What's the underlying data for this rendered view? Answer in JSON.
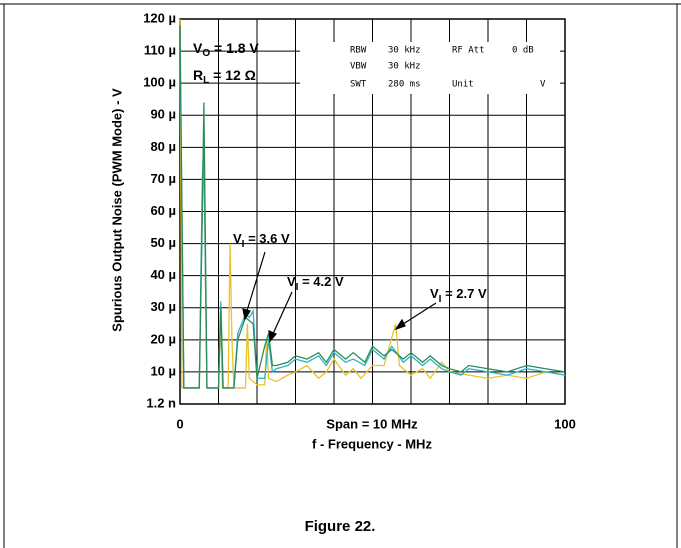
{
  "chart_data": {
    "type": "line",
    "y_label": "Spurious Output Noise (PWM Mode) - V",
    "x_label": "f - Frequency - MHz",
    "caption": "Figure 22.",
    "span_note": "Span = 10 MHz",
    "conditions": [
      {
        "main": "V",
        "sub": "O",
        "tail": " = 1.8 V"
      },
      {
        "main": "R",
        "sub": "L",
        "tail": " = 12 Ω"
      }
    ],
    "instrument": [
      [
        "RBW",
        "30 kHz",
        "RF Att",
        "0 dB"
      ],
      [
        "VBW",
        "30 kHz"
      ],
      [
        "SWT",
        "280 ms",
        "Unit",
        "V"
      ]
    ],
    "xlim": [
      0,
      100
    ],
    "xticks": [
      0,
      {
        "value": 10,
        "label": null
      },
      {
        "value": 20,
        "label": null
      },
      {
        "value": 30,
        "label": null
      },
      {
        "value": 40,
        "label": null
      },
      {
        "value": 50,
        "label": null
      },
      {
        "value": 60,
        "label": null
      },
      {
        "value": 70,
        "label": null
      },
      {
        "value": 80,
        "label": null
      },
      {
        "value": 90,
        "label": null
      },
      100
    ],
    "ylim": [
      0.0012,
      120
    ],
    "yticks": [
      {
        "value": 0.0012,
        "label": "1.2 n"
      },
      {
        "value": 10,
        "label": "10 µ"
      },
      {
        "value": 20,
        "label": "20 µ"
      },
      {
        "value": 30,
        "label": "30 µ"
      },
      {
        "value": 40,
        "label": "40 µ"
      },
      {
        "value": 50,
        "label": "50 µ"
      },
      {
        "value": 60,
        "label": "60 µ"
      },
      {
        "value": 70,
        "label": "70 µ"
      },
      {
        "value": 80,
        "label": "80 µ"
      },
      {
        "value": 90,
        "label": "90 µ"
      },
      {
        "value": 100,
        "label": "100 µ"
      },
      {
        "value": 110,
        "label": "110 µ"
      },
      {
        "value": 120,
        "label": "120 µ"
      }
    ],
    "grid": true,
    "series": [
      {
        "label": {
          "main": "V",
          "sub": "I",
          "tail": " = 2.7 V"
        },
        "color": "#e8c42c",
        "x": [
          0,
          0.5,
          1,
          5,
          5.8,
          6.2,
          6.6,
          7,
          10,
          10.5,
          11,
          12.5,
          13,
          13.5,
          14,
          17,
          17.5,
          18,
          20,
          22,
          22.5,
          23,
          25,
          28,
          30,
          33,
          36,
          38,
          40,
          43,
          45,
          47,
          50,
          53,
          56,
          57,
          60,
          63,
          65,
          68,
          70,
          75,
          80,
          85,
          90,
          95,
          100
        ],
        "values": [
          120,
          5,
          5,
          5,
          60,
          80,
          40,
          5,
          5,
          30,
          5,
          5,
          50,
          20,
          5,
          5,
          25,
          8,
          6,
          6,
          20,
          8,
          7,
          9,
          10,
          12,
          8,
          10,
          14,
          9,
          11,
          8,
          12,
          12,
          25,
          12,
          9,
          11,
          8,
          13,
          10,
          9,
          8,
          9,
          8,
          10,
          9
        ]
      },
      {
        "label": {
          "main": "V",
          "sub": "I",
          "tail": " = 3.6 V"
        },
        "color": "#2ab4c4",
        "x": [
          0,
          1,
          5,
          5.8,
          6.2,
          6.6,
          7,
          10,
          10.6,
          11.2,
          14,
          15,
          17,
          18,
          19,
          20,
          22,
          23,
          24,
          25,
          28,
          30,
          33,
          36,
          38,
          40,
          43,
          45,
          48,
          50,
          53,
          55,
          58,
          60,
          63,
          65,
          68,
          70,
          73,
          75,
          80,
          85,
          90,
          95,
          100
        ],
        "values": [
          115,
          5,
          5,
          70,
          82,
          40,
          5,
          5,
          32,
          5,
          5,
          22,
          28,
          27,
          29,
          8,
          8,
          20,
          10,
          11,
          12,
          14,
          13,
          15,
          12,
          16,
          13,
          14,
          12,
          17,
          14,
          18,
          13,
          15,
          12,
          14,
          11,
          10,
          9,
          11,
          10,
          9,
          11,
          10,
          9
        ]
      },
      {
        "label": {
          "main": "V",
          "sub": "I",
          "tail": " = 4.2 V"
        },
        "color": "#2e8b57",
        "x": [
          0,
          1,
          5,
          5.8,
          6.2,
          6.6,
          7,
          10,
          10.6,
          11.2,
          14,
          15,
          17,
          18,
          19,
          20,
          22,
          23,
          24,
          25,
          28,
          30,
          33,
          36,
          38,
          40,
          43,
          45,
          48,
          50,
          53,
          55,
          58,
          60,
          63,
          65,
          68,
          70,
          73,
          75,
          80,
          85,
          90,
          95,
          100
        ],
        "values": [
          118,
          5,
          5,
          60,
          94,
          50,
          5,
          5,
          30,
          5,
          5,
          20,
          27,
          26,
          25,
          8,
          18,
          22,
          12,
          12,
          13,
          15,
          14,
          16,
          13,
          17,
          14,
          16,
          13,
          18,
          15,
          17,
          14,
          16,
          13,
          15,
          12,
          11,
          10,
          12,
          11,
          10,
          12,
          11,
          10
        ]
      }
    ]
  }
}
